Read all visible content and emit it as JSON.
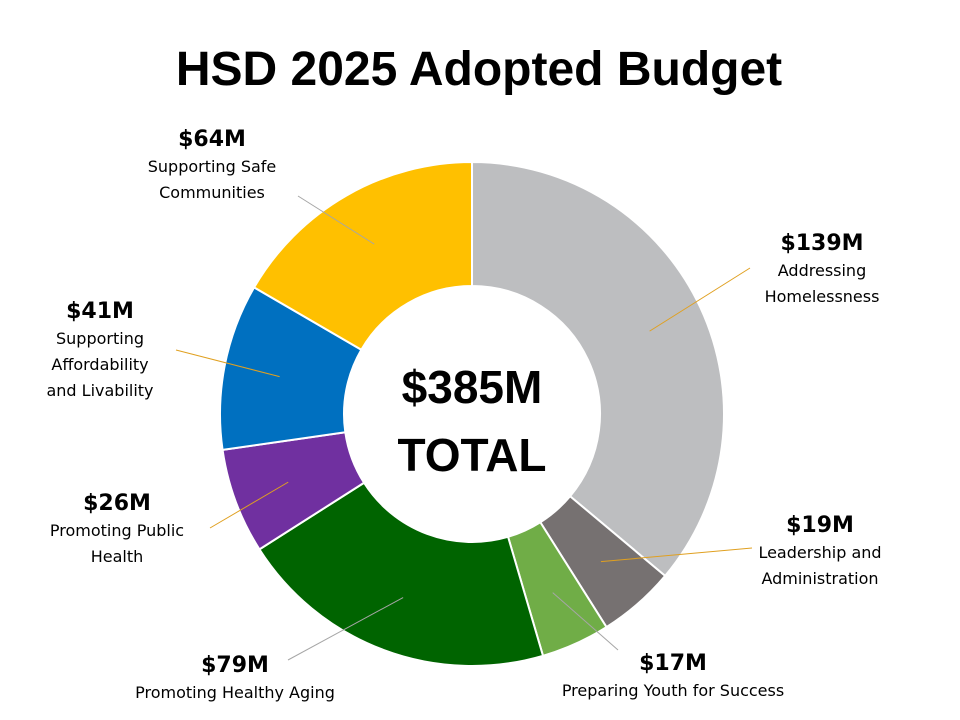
{
  "chart_data": {
    "type": "pie",
    "title": "HSD 2025 Adopted Budget",
    "center_amount": "$385M",
    "center_label": "TOTAL",
    "slices": [
      {
        "name": "Addressing Homelessness",
        "value": 139,
        "label": "$139M",
        "color": "#BDBEC0"
      },
      {
        "name": "Leadership and Administration",
        "value": 19,
        "label": "$19M",
        "color": "#767171"
      },
      {
        "name": "Preparing Youth for Success",
        "value": 17,
        "label": "$17M",
        "color": "#70AD47"
      },
      {
        "name": "Promoting Healthy Aging",
        "value": 79,
        "label": "$79M",
        "color": "#006400"
      },
      {
        "name": "Promoting Public Health",
        "value": 26,
        "label": "$26M",
        "color": "#7030A0"
      },
      {
        "name": "Supporting Affordability and Livability",
        "value": 41,
        "label": "$41M",
        "color": "#0070C0"
      },
      {
        "name": "Supporting Safe Communities",
        "value": 64,
        "label": "$64M",
        "color": "#FFC000"
      }
    ],
    "label_lines": [
      {
        "name_lines": "Addressing\nHomelessness"
      },
      {
        "name_lines": "Leadership and\nAdministration"
      },
      {
        "name_lines": "Preparing Youth for Success"
      },
      {
        "name_lines": "Promoting Healthy Aging"
      },
      {
        "name_lines": "Promoting Public\nHealth"
      },
      {
        "name_lines": "Supporting\nAffordability\nand Livability"
      },
      {
        "name_lines": "Supporting Safe\nCommunities"
      }
    ]
  }
}
